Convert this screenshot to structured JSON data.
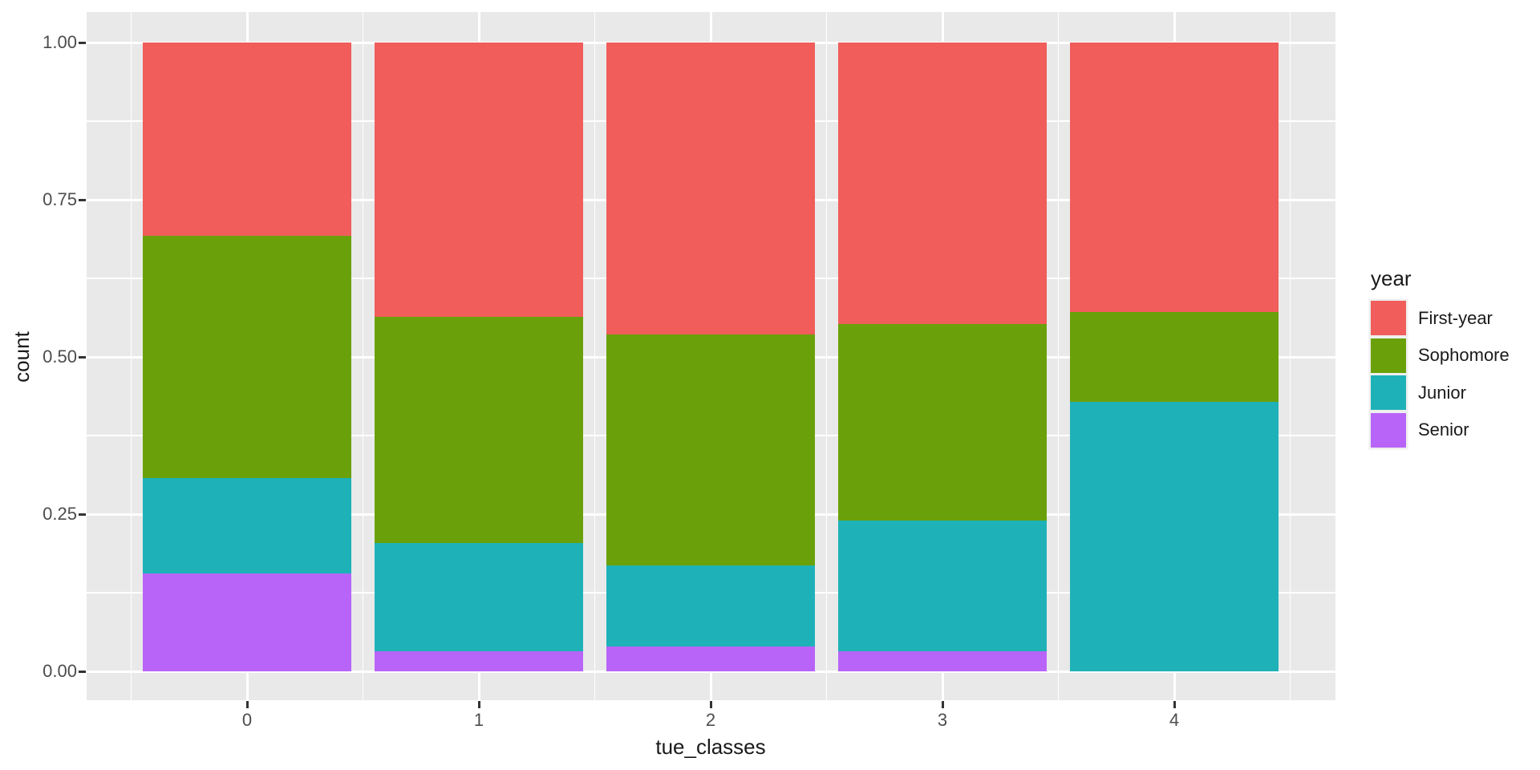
{
  "chart_data": {
    "type": "bar",
    "stacked": true,
    "normalized": true,
    "title": "",
    "xlabel": "tue_classes",
    "ylabel": "count",
    "categories": [
      "0",
      "1",
      "2",
      "3",
      "4"
    ],
    "series": [
      {
        "name": "Senior",
        "color": "#b864f8",
        "values": [
          0.156,
          0.032,
          0.04,
          0.032,
          0.0
        ]
      },
      {
        "name": "Junior",
        "color": "#1eb2b8",
        "values": [
          0.151,
          0.172,
          0.128,
          0.208,
          0.429
        ]
      },
      {
        "name": "Sophomore",
        "color": "#6aa10a",
        "values": [
          0.386,
          0.36,
          0.368,
          0.312,
          0.142
        ]
      },
      {
        "name": "First-year",
        "color": "#f05d5a",
        "values": [
          0.307,
          0.436,
          0.464,
          0.448,
          0.429
        ]
      }
    ],
    "stack_order_bottom_to_top": [
      "Senior",
      "Junior",
      "Sophomore",
      "First-year"
    ],
    "legend": {
      "title": "year",
      "entries": [
        "First-year",
        "Sophomore",
        "Junior",
        "Senior"
      ],
      "position": "right"
    },
    "x_ticks": [
      "0",
      "1",
      "2",
      "3",
      "4"
    ],
    "y_ticks": [
      "0.00",
      "0.25",
      "0.50",
      "0.75",
      "1.00"
    ],
    "y_tick_values": [
      0,
      0.25,
      0.5,
      0.75,
      1
    ],
    "y_minor_values": [
      0.125,
      0.375,
      0.625,
      0.875
    ],
    "ylim": [
      0,
      1
    ],
    "grid": true,
    "theme": {
      "panel_background": "#e9e9e9",
      "grid_color": "#ffffff",
      "tick_label_color": "#4d4d4d",
      "axis_title_color": "#1a1a1a",
      "legend_key_backing": "#efefef"
    }
  }
}
